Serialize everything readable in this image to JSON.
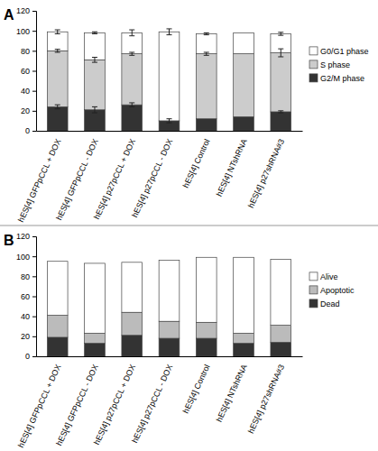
{
  "chart_data": [
    {
      "type": "bar",
      "title": "A",
      "stacked": true,
      "legend": "right",
      "categories": [
        "hES[4] GFPpCCL + DOX",
        "hES[4] GFPpCCL - DOX",
        "hES[4] p27pCCL + DOX",
        "hES[4] p27pCCL - DOX",
        "hES[4] Control",
        "hES[4] NTshRNA",
        "hES[4] p27shRNA#3"
      ],
      "ylim": [
        0,
        120
      ],
      "yticks": [
        0,
        20,
        40,
        60,
        80,
        100,
        120
      ],
      "series": [
        {
          "name": "G2/M phase",
          "color": "#333333",
          "values": [
            24,
            21,
            26,
            10,
            12,
            14,
            19
          ],
          "errors": [
            2,
            3,
            2,
            2,
            null,
            null,
            1
          ]
        },
        {
          "name": "S phase",
          "color": "#cccccc",
          "values": [
            56,
            50,
            51,
            0,
            65,
            63,
            59
          ],
          "errors": [
            1.5,
            2.5,
            1.5,
            null,
            1.5,
            null,
            4
          ]
        },
        {
          "name": "G0/G1 phase",
          "color": "#ffffff",
          "values": [
            19,
            27,
            21,
            89,
            20,
            21,
            19
          ],
          "errors": [
            2,
            1,
            3,
            3,
            1,
            null,
            1.5
          ]
        }
      ]
    },
    {
      "type": "bar",
      "title": "B",
      "stacked": true,
      "legend": "right",
      "categories": [
        "hES[4] GFPpCCL + DOX",
        "hES[4] GFPpCCL - DOX",
        "hES[4] p27pCCL + DOX",
        "hES[4] p27pCCL - DOX",
        "hES[4] Control",
        "hES[4] NTshRNA",
        "hES[4] p27shRNA#3"
      ],
      "ylim": [
        0,
        120
      ],
      "yticks": [
        0,
        20,
        40,
        60,
        80,
        100,
        120
      ],
      "series": [
        {
          "name": "Dead",
          "color": "#333333",
          "values": [
            19,
            13,
            21,
            18,
            18,
            13,
            14
          ]
        },
        {
          "name": "Apoptotic",
          "color": "#bbbbbb",
          "values": [
            22,
            10,
            23,
            17,
            16,
            10,
            17
          ]
        },
        {
          "name": "Alive",
          "color": "#ffffff",
          "values": [
            54,
            70,
            50,
            61,
            65,
            76,
            66
          ]
        }
      ]
    }
  ]
}
